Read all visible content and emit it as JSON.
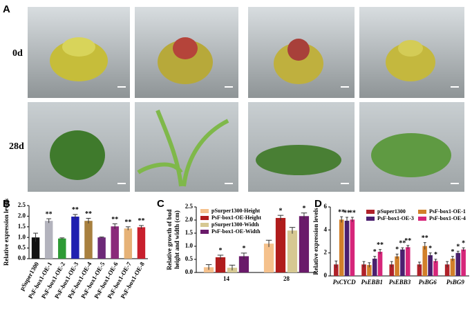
{
  "figure": {
    "panel_a": {
      "label": "A",
      "rows": [
        "0d",
        "28d"
      ]
    }
  },
  "chart_data": [
    {
      "type": "bar",
      "label": "B",
      "ylabel": [
        "Relative expression levels"
      ],
      "categories": [
        "pSuper1300",
        "PsF-box1-OE-1",
        "PsF-box1-OE-2",
        "PsF-box1-OE-3",
        "PsF-box1-OE-4",
        "PsF-box1-OE-5",
        "PsF-box1-OE-6",
        "PsF-box1-OE-7",
        "PsF-box1-OE-8"
      ],
      "values": [
        1.0,
        1.78,
        0.95,
        1.98,
        1.78,
        1.0,
        1.52,
        1.42,
        1.48
      ],
      "errors": [
        0.2,
        0.1,
        0.03,
        0.1,
        0.12,
        0.02,
        0.12,
        0.08,
        0.08
      ],
      "annotations": [
        null,
        "**",
        null,
        "**",
        "**",
        null,
        "**",
        "**",
        "**"
      ],
      "colors": [
        "#111111",
        "#b3b3bd",
        "#2e9a35",
        "#2020b0",
        "#a8803f",
        "#6d2a78",
        "#8a2a7a",
        "#e6b277",
        "#c81f2d"
      ],
      "ylim": [
        0,
        2.5
      ],
      "yticks": [
        {
          "value": 0,
          "label": "0.0"
        },
        0.5,
        {
          "value": 1,
          "label": "1.0"
        },
        1.5,
        {
          "value": 2,
          "label": "2.0"
        },
        2.5
      ]
    },
    {
      "type": "grouped-bar",
      "label": "C",
      "ylabel": [
        "Relative growth of bud",
        "height and width (cm)"
      ],
      "categories": [
        "14",
        "28"
      ],
      "series": [
        {
          "name": "pSurper1300-Height",
          "color": "#f5c18c",
          "values": [
            0.2,
            1.1
          ],
          "errors": [
            0.1,
            0.13
          ],
          "annotations": [
            null,
            null
          ]
        },
        {
          "name": "PsF-box1-OE-Height",
          "color": "#b01c1c",
          "values": [
            0.58,
            2.08
          ],
          "errors": [
            0.08,
            0.1
          ],
          "annotations": [
            "*",
            "*"
          ]
        },
        {
          "name": "pSurper1300-Width",
          "color": "#d6c892",
          "values": [
            0.18,
            1.6
          ],
          "errors": [
            0.1,
            0.12
          ],
          "annotations": [
            null,
            null
          ]
        },
        {
          "name": "PsF-box1-OE-Width",
          "color": "#6a1a6a",
          "values": [
            0.62,
            2.15
          ],
          "errors": [
            0.12,
            0.12
          ],
          "annotations": [
            "*",
            "*"
          ]
        }
      ],
      "ylim": [
        0,
        2.5
      ],
      "yticks": [
        {
          "value": 0,
          "label": "0.0"
        },
        0.5,
        {
          "value": 1,
          "label": "1.0"
        },
        1.5,
        {
          "value": 2,
          "label": "2.0"
        },
        2.5
      ]
    },
    {
      "type": "grouped-bar",
      "label": "D",
      "ylabel": [
        "Relative expression levels"
      ],
      "categories": [
        "PsCYCD",
        "PsEBB1",
        "PsEBB3",
        "PsBG6",
        "PsBG9"
      ],
      "series": [
        {
          "name": "pSuper1300",
          "color": "#b0222a",
          "values": [
            1,
            1,
            1,
            1,
            1
          ],
          "errors": [
            0.3,
            0.25,
            0.25,
            0.2,
            0.25
          ],
          "annotations": [
            null,
            null,
            null,
            null,
            null
          ]
        },
        {
          "name": "PsF-box1-OE-1",
          "color": "#d2802a",
          "values": [
            4.9,
            0.95,
            1.7,
            2.6,
            1.5
          ],
          "errors": [
            0.25,
            0.2,
            0.2,
            0.3,
            0.2
          ],
          "annotations": [
            "**",
            null,
            "*",
            "**",
            "*"
          ]
        },
        {
          "name": "PsF-box1-OE-3",
          "color": "#4b1f6f",
          "values": [
            4.8,
            1.5,
            2.3,
            1.8,
            2.0
          ],
          "errors": [
            0.3,
            0.2,
            0.15,
            0.2,
            0.15
          ],
          "annotations": [
            "**",
            "*",
            "**",
            "*",
            "*"
          ]
        },
        {
          "name": "PsF-box1-OE-4",
          "color": "#d6267a",
          "values": [
            4.9,
            2.1,
            2.5,
            1.3,
            2.3
          ],
          "errors": [
            0.2,
            0.2,
            0.15,
            0.15,
            0.15
          ],
          "annotations": [
            "**",
            "**",
            "**",
            "*",
            "*"
          ]
        }
      ],
      "ylim": [
        0,
        6
      ],
      "yticks": [
        0,
        2,
        4,
        6
      ]
    }
  ]
}
